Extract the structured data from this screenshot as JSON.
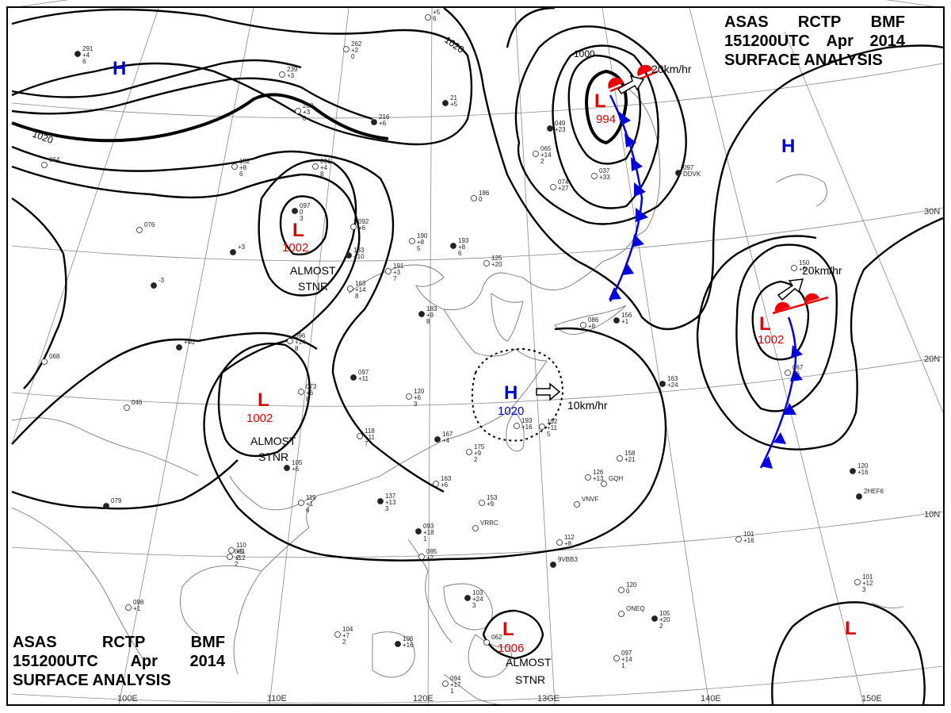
{
  "header_top": {
    "line1": [
      "ASAS",
      "RCTP",
      "BMF"
    ],
    "line2": [
      "151200UTC",
      "Apr",
      "2014"
    ],
    "line3": "SURFACE ANALYSIS"
  },
  "header_bottom": {
    "line1": [
      "ASAS",
      "RCTP",
      "BMF"
    ],
    "line2": [
      "151200UTC",
      "Apr",
      "2014"
    ],
    "line3": "SURFACE ANALYSIS"
  },
  "grid_labels": {
    "lon": [
      "100E",
      "110E",
      "120E",
      "13GE",
      "140E",
      "150E"
    ],
    "lat": [
      "30N",
      "20N",
      "10N"
    ]
  },
  "isobar_labels": [
    "1020",
    "1020",
    "1000"
  ],
  "systems": [
    {
      "symbol": "H",
      "color": "#0000cc"
    },
    {
      "symbol": "L",
      "color": "#dd0000",
      "pressure": "1002",
      "note": [
        "ALMOST",
        "STNR"
      ]
    },
    {
      "symbol": "L",
      "color": "#dd0000",
      "pressure": "1002",
      "note": [
        "ALMOST",
        "STNR"
      ]
    },
    {
      "symbol": "L",
      "color": "#dd0000",
      "pressure": "994",
      "motion": "20km/hr"
    },
    {
      "symbol": "H",
      "color": "#0000cc"
    },
    {
      "symbol": "L",
      "color": "#dd0000",
      "pressure": "1002",
      "motion": "20km/hr"
    },
    {
      "symbol": "H",
      "color": "#0000cc",
      "pressure": "1020",
      "motion": "10km/hr"
    },
    {
      "symbol": "L",
      "color": "#dd0000",
      "pressure": "1006",
      "note": [
        "ALMOST",
        "STNR"
      ]
    },
    {
      "symbol": "L",
      "color": "#dd0000"
    }
  ],
  "colors": {
    "high": "#0000cc",
    "low": "#dd0000",
    "cold_front": "#0000dd",
    "warm_front": "#ee0000"
  },
  "stations": [
    {
      "id": "s1",
      "lines": [
        "291",
        "+4",
        "6"
      ]
    },
    {
      "id": "s2",
      "lines": [
        "239",
        "+3"
      ]
    },
    {
      "id": "s3",
      "lines": [
        "238",
        "+3",
        "8"
      ]
    },
    {
      "id": "s4",
      "lines": [
        "216",
        "+6"
      ]
    },
    {
      "id": "s5",
      "lines": [
        "262",
        "+2",
        "0"
      ]
    },
    {
      "id": "s6",
      "lines": [
        "+5",
        "6"
      ]
    },
    {
      "id": "s7",
      "lines": [
        "21",
        "+5"
      ]
    },
    {
      "id": "s8",
      "lines": [
        "152",
        "+8",
        "6"
      ]
    },
    {
      "id": "s9",
      "lines": [
        "091",
        "+4",
        "8"
      ]
    },
    {
      "id": "s10",
      "lines": [
        "097",
        "0",
        "3"
      ]
    },
    {
      "id": "s11",
      "lines": [
        "092",
        "+6"
      ]
    },
    {
      "id": "s12",
      "lines": [
        "190",
        "+8",
        "5"
      ]
    },
    {
      "id": "s13",
      "lines": [
        "193",
        "+8",
        "6"
      ]
    },
    {
      "id": "s14",
      "lines": [
        "186",
        "0"
      ]
    },
    {
      "id": "s15",
      "lines": [
        "125",
        "+20"
      ]
    },
    {
      "id": "s16",
      "lines": [
        "133",
        "+10"
      ]
    },
    {
      "id": "s17",
      "lines": [
        "191",
        "+3",
        "7"
      ]
    },
    {
      "id": "s18",
      "lines": [
        "163",
        "+14",
        "8"
      ]
    },
    {
      "id": "s19",
      "lines": [
        "183",
        "+9",
        "8"
      ]
    },
    {
      "id": "s20",
      "lines": [
        "096",
        "+14",
        "8"
      ]
    },
    {
      "id": "s21",
      "lines": [
        "073",
        "+6",
        "8"
      ]
    },
    {
      "id": "s22",
      "lines": [
        "097",
        "+11"
      ]
    },
    {
      "id": "s23",
      "lines": [
        "120",
        "+6",
        "3"
      ]
    },
    {
      "id": "s24",
      "lines": [
        "118",
        "+11",
        "7"
      ]
    },
    {
      "id": "s25",
      "lines": [
        "167",
        "+4"
      ]
    },
    {
      "id": "s26",
      "lines": [
        "175",
        "+9",
        "2"
      ]
    },
    {
      "id": "s27",
      "lines": [
        "163",
        "+6"
      ]
    },
    {
      "id": "s28",
      "lines": [
        "137",
        "+13",
        "3"
      ]
    },
    {
      "id": "s29",
      "lines": [
        "153",
        "+9"
      ]
    },
    {
      "id": "s30",
      "lines": [
        "119",
        "+1",
        "6"
      ]
    },
    {
      "id": "s31",
      "lines": [
        "105",
        "+6"
      ]
    },
    {
      "id": "s32",
      "lines": [
        "110",
        "+5",
        "2"
      ]
    },
    {
      "id": "s33",
      "lines": [
        "081",
        "+12",
        "2"
      ]
    },
    {
      "id": "s34",
      "lines": [
        "093",
        "+18",
        "1"
      ]
    },
    {
      "id": "s35",
      "lines": [
        "095",
        "+2"
      ]
    },
    {
      "id": "s36",
      "lines": [
        "112",
        "+8"
      ]
    },
    {
      "id": "s37",
      "lines": [
        "103",
        "+24",
        "3"
      ]
    },
    {
      "id": "s38",
      "lines": [
        "062"
      ]
    },
    {
      "id": "s39",
      "lines": [
        "104",
        "+7",
        "2"
      ]
    },
    {
      "id": "s40",
      "lines": [
        "106",
        "+16"
      ]
    },
    {
      "id": "s41",
      "lines": [
        "094",
        "+17",
        "1"
      ]
    },
    {
      "id": "s42",
      "lines": [
        "098",
        "+1"
      ]
    },
    {
      "id": "s43",
      "lines": [
        "079"
      ]
    },
    {
      "id": "s44",
      "lines": [
        "046"
      ]
    },
    {
      "id": "s45",
      "lines": [
        "068"
      ]
    },
    {
      "id": "s46",
      "lines": [
        "+40"
      ]
    },
    {
      "id": "s47",
      "lines": [
        "192",
        "+11",
        "5"
      ]
    },
    {
      "id": "s48",
      "lines": [
        "193",
        "+16"
      ]
    },
    {
      "id": "s49",
      "lines": [
        "163",
        "+24"
      ]
    },
    {
      "id": "s50",
      "lines": [
        "158",
        "+21"
      ]
    },
    {
      "id": "s51",
      "lines": [
        "126",
        "+13"
      ]
    },
    {
      "id": "s52",
      "lines": [
        "156",
        "+1"
      ]
    },
    {
      "id": "s53",
      "lines": [
        "086",
        "+8"
      ]
    },
    {
      "id": "s54",
      "lines": [
        "065",
        "+14",
        "2"
      ]
    },
    {
      "id": "s55",
      "lines": [
        "049",
        "+23"
      ]
    },
    {
      "id": "s56",
      "lines": [
        "074",
        "+27"
      ]
    },
    {
      "id": "s57",
      "lines": [
        "037",
        "+33"
      ]
    },
    {
      "id": "s58",
      "lines": [
        "097",
        "DDVK"
      ]
    },
    {
      "id": "s59",
      "lines": [
        "150",
        "+8"
      ]
    },
    {
      "id": "s60",
      "lines": [
        "067",
        "+6"
      ]
    },
    {
      "id": "s61",
      "lines": [
        "120",
        "+16"
      ]
    },
    {
      "id": "s62",
      "lines": [
        "101",
        "+16"
      ]
    },
    {
      "id": "s63",
      "lines": [
        "120",
        "0"
      ]
    },
    {
      "id": "s64",
      "lines": [
        "105",
        "+20",
        "2"
      ]
    },
    {
      "id": "s65",
      "lines": [
        "101",
        "+12",
        "3"
      ]
    },
    {
      "id": "s66",
      "lines": [
        "097",
        "+14",
        "1"
      ]
    },
    {
      "id": "s67",
      "lines": [
        "-3"
      ]
    },
    {
      "id": "s68",
      "lines": [
        "064"
      ]
    },
    {
      "id": "s69",
      "lines": [
        "076"
      ]
    },
    {
      "id": "s70",
      "lines": [
        "+3"
      ]
    },
    {
      "id": "s71",
      "lines": [
        "VRRC"
      ]
    },
    {
      "id": "s72",
      "lines": [
        "VNVF"
      ]
    },
    {
      "id": "s73",
      "lines": [
        "9VBB3"
      ]
    },
    {
      "id": "s74",
      "lines": [
        "GQH"
      ]
    },
    {
      "id": "s75",
      "lines": [
        "ONEQ"
      ]
    },
    {
      "id": "s76",
      "lines": [
        "2HEF6"
      ]
    }
  ]
}
